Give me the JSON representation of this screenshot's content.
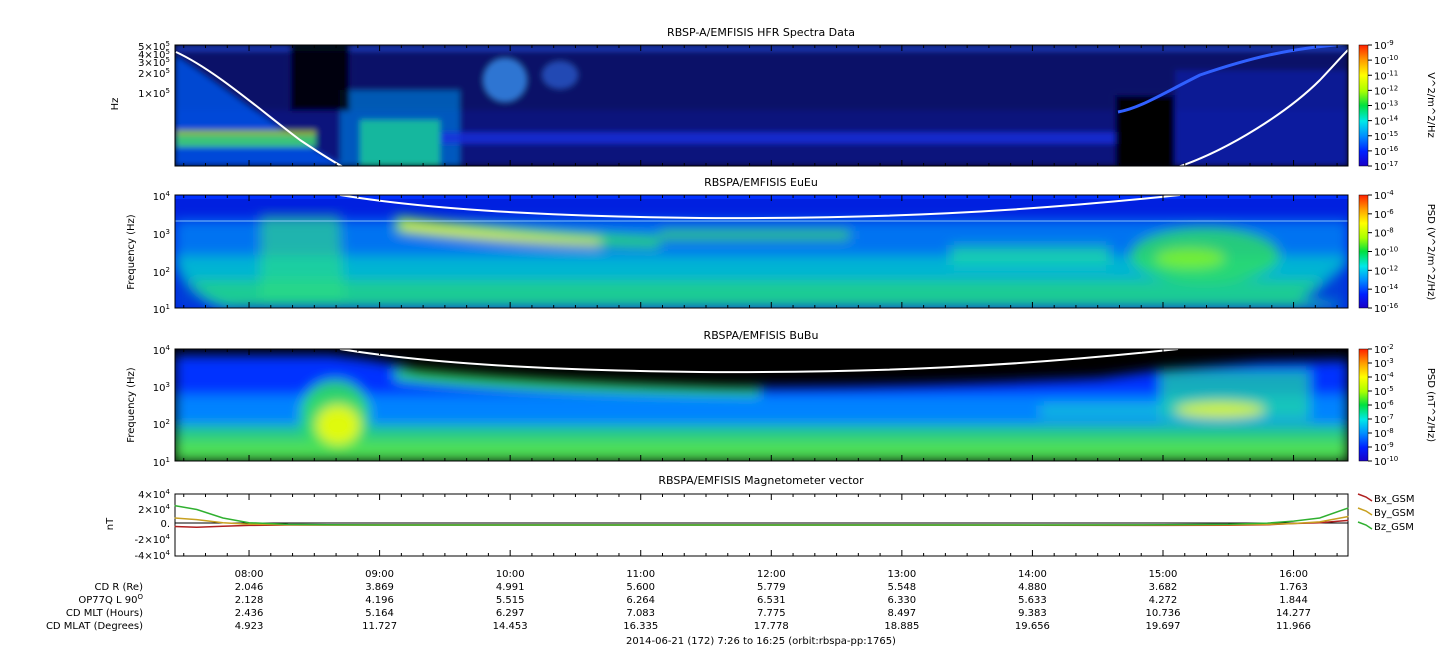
{
  "colors": {
    "background": "#000000",
    "colormap": [
      "#1a00c8",
      "#0020ff",
      "#0090ff",
      "#00e8e8",
      "#00e040",
      "#a8ff00",
      "#ffff00",
      "#ffa000",
      "#ff2000"
    ],
    "trace_line": "#ffffff"
  },
  "time_axis": {
    "tick_labels": [
      "08:00",
      "09:00",
      "10:00",
      "11:00",
      "12:00",
      "13:00",
      "14:00",
      "15:00",
      "16:00"
    ],
    "start_hours": 7.433,
    "end_hours": 16.417,
    "footer": "2014-06-21 (172) 7:26 to 16:25 (orbit:rbspa-pp:1765)"
  },
  "ephemeris": {
    "rows": [
      {
        "label": "CD R (Re)",
        "values": [
          "2.046",
          "3.869",
          "4.991",
          "5.600",
          "5.779",
          "5.548",
          "4.880",
          "3.682",
          "1.763"
        ]
      },
      {
        "label": "OP77Q L 90",
        "sup": "O",
        "values": [
          "2.128",
          "4.196",
          "5.515",
          "6.264",
          "6.531",
          "6.330",
          "5.633",
          "4.272",
          "1.844"
        ]
      },
      {
        "label": "CD MLT (Hours)",
        "values": [
          "2.436",
          "5.164",
          "6.297",
          "7.083",
          "7.775",
          "8.497",
          "9.383",
          "10.736",
          "14.277"
        ]
      },
      {
        "label": "CD MLAT (Degrees)",
        "values": [
          "4.923",
          "11.727",
          "14.453",
          "16.335",
          "17.778",
          "18.885",
          "19.656",
          "19.697",
          "11.966"
        ]
      }
    ]
  },
  "chart_data": [
    {
      "type": "heatmap",
      "title": "RBSP-A/EMFISIS  HFR Spectra Data",
      "ylabel": "Hz",
      "yscale": "log",
      "ylim": [
        10000,
        500000
      ],
      "ytick_labels": [
        {
          "label": "5×10",
          "exp": "5",
          "value": 500000
        },
        {
          "label": "4×10",
          "exp": "5",
          "value": 400000
        },
        {
          "label": "3×10",
          "exp": "5",
          "value": 300000
        },
        {
          "label": "2×10",
          "exp": "5",
          "value": 200000
        },
        {
          "label": "1×10",
          "exp": "5",
          "value": 100000
        }
      ],
      "colorbar": {
        "label": "V^2/m^2/Hz",
        "scale": "log",
        "range_exp": [
          -17,
          -9
        ],
        "tick_exps": [
          "-9",
          "-10",
          "-11",
          "-12",
          "-13",
          "-14",
          "-15",
          "-16",
          "-17"
        ]
      }
    },
    {
      "type": "heatmap",
      "title": "RBSPA/EMFISIS  EuEu",
      "ylabel": "Frequency (Hz)",
      "yscale": "log",
      "ylim": [
        10,
        10000
      ],
      "ytick_exps": [
        "4",
        "3",
        "2",
        "1"
      ],
      "colorbar": {
        "label": "PSD (V^2/m^2/Hz)",
        "scale": "log",
        "range_exp": [
          -16,
          -4
        ],
        "tick_exps": [
          "-4",
          "-6",
          "-8",
          "-10",
          "-12",
          "-14",
          "-16"
        ]
      }
    },
    {
      "type": "heatmap",
      "title": "RBSPA/EMFISIS  BuBu",
      "ylabel": "Frequency (Hz)",
      "yscale": "log",
      "ylim": [
        10,
        10000
      ],
      "ytick_exps": [
        "4",
        "3",
        "2",
        "1"
      ],
      "colorbar": {
        "label": "PSD (nT^2/Hz)",
        "scale": "log",
        "range_exp": [
          -10,
          -2
        ],
        "tick_exps": [
          "-2",
          "-3",
          "-4",
          "-5",
          "-6",
          "-7",
          "-8",
          "-9",
          "-10"
        ]
      }
    },
    {
      "type": "line",
      "title": "RBSPA/EMFISIS  Magnetometer vector",
      "ylabel": "nT",
      "ylim": [
        -40000,
        40000
      ],
      "ytick_labels": [
        {
          "label": "4×10",
          "exp": "4",
          "value": 40000
        },
        {
          "label": "2×10",
          "exp": "4",
          "value": 20000
        },
        {
          "label": "0.",
          "exp": "",
          "value": 0
        },
        {
          "label": "-2×10",
          "exp": "4",
          "value": -20000
        },
        {
          "label": "-4×10",
          "exp": "4",
          "value": -40000
        }
      ],
      "x_hours": [
        7.43,
        7.6,
        7.8,
        8.0,
        8.3,
        8.6,
        9.0,
        10.0,
        11.0,
        12.0,
        13.0,
        14.0,
        15.0,
        15.5,
        15.8,
        16.0,
        16.2,
        16.42
      ],
      "series": [
        {
          "name": "Bx_GSM",
          "color": "#b02020",
          "values": [
            -2000,
            -3000,
            -1500,
            -500,
            0,
            0,
            0,
            0,
            0,
            0,
            0,
            -300,
            -500,
            -200,
            300,
            2000,
            3000,
            6000
          ]
        },
        {
          "name": "By_GSM",
          "color": "#c8a020",
          "values": [
            9000,
            7000,
            3000,
            1000,
            300,
            0,
            0,
            0,
            0,
            0,
            0,
            0,
            0,
            300,
            800,
            2000,
            4000,
            11000
          ]
        },
        {
          "name": "Bz_GSM",
          "color": "#30b030",
          "values": [
            25000,
            20000,
            9000,
            3000,
            800,
            200,
            0,
            0,
            0,
            0,
            0,
            0,
            200,
            900,
            2500,
            5000,
            9000,
            22000
          ]
        }
      ]
    }
  ]
}
